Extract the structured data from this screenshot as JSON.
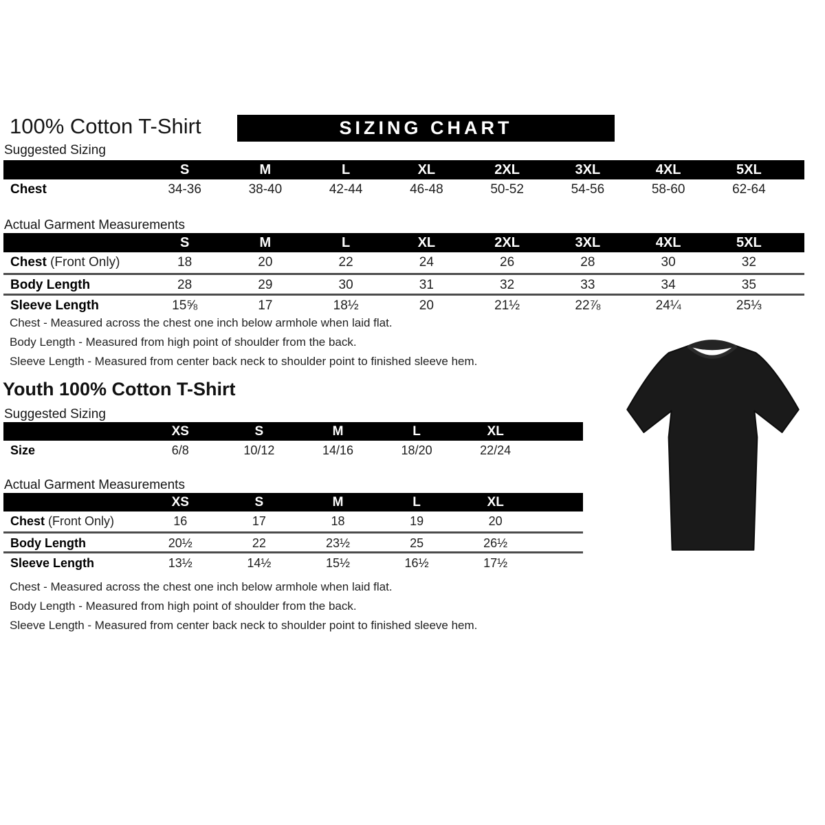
{
  "adult": {
    "title": "100% Cotton T-Shirt",
    "banner": "SIZING CHART",
    "suggested_heading": "Suggested Sizing",
    "suggested_table": {
      "sizes": [
        "S",
        "M",
        "L",
        "XL",
        "2XL",
        "3XL",
        "4XL",
        "5XL"
      ],
      "rows": [
        {
          "label": "Chest",
          "suffix": "",
          "values": [
            "34-36",
            "38-40",
            "42-44",
            "46-48",
            "50-52",
            "54-56",
            "58-60",
            "62-64"
          ]
        }
      ]
    },
    "actual_heading": "Actual Garment Measurements",
    "actual_table": {
      "sizes": [
        "S",
        "M",
        "L",
        "XL",
        "2XL",
        "3XL",
        "4XL",
        "5XL"
      ],
      "rows": [
        {
          "label": "Chest",
          "suffix": " (Front Only)",
          "values": [
            "18",
            "20",
            "22",
            "24",
            "26",
            "28",
            "30",
            "32"
          ]
        },
        {
          "label": "Body Length",
          "suffix": "",
          "values": [
            "28",
            "29",
            "30",
            "31",
            "32",
            "33",
            "34",
            "35"
          ]
        },
        {
          "label": "Sleeve Length",
          "suffix": "",
          "values": [
            "15⅝",
            "17",
            "18½",
            "20",
            "21½",
            "22⅞",
            "24¼",
            "25⅓"
          ]
        }
      ]
    },
    "notes": [
      "Chest - Measured across the chest one inch below armhole when laid flat.",
      "Body Length - Measured from high point of shoulder from the back.",
      "Sleeve Length - Measured from center back neck to shoulder point to finished sleeve hem."
    ]
  },
  "youth": {
    "title": "Youth 100% Cotton T-Shirt",
    "suggested_heading": "Suggested Sizing",
    "suggested_table": {
      "sizes": [
        "XS",
        "S",
        "M",
        "L",
        "XL"
      ],
      "rows": [
        {
          "label": "Size",
          "suffix": "",
          "values": [
            "6/8",
            "10/12",
            "14/16",
            "18/20",
            "22/24"
          ]
        }
      ]
    },
    "actual_heading": "Actual Garment Measurements",
    "actual_table": {
      "sizes": [
        "XS",
        "S",
        "M",
        "L",
        "XL"
      ],
      "rows": [
        {
          "label": "Chest",
          "suffix": " (Front Only)",
          "values": [
            "16",
            "17",
            "18",
            "19",
            "20"
          ]
        },
        {
          "label": "Body Length",
          "suffix": "",
          "values": [
            "20½",
            "22",
            "23½",
            "25",
            "26½"
          ]
        },
        {
          "label": "Sleeve Length",
          "suffix": "",
          "values": [
            "13½",
            "14½",
            "15½",
            "16½",
            "17½"
          ]
        }
      ]
    },
    "notes": [
      "Chest - Measured across the chest one inch below armhole when laid flat.",
      "Body Length - Measured from high point of shoulder from the back.",
      "Sleeve Length - Measured from center back neck to shoulder point to finished sleeve hem."
    ]
  },
  "tshirt_image": {
    "description": "black short-sleeve t-shirt photo",
    "color": "#1a1a1a"
  },
  "colors": {
    "bar_bg": "#000000",
    "bar_text": "#ffffff",
    "separator": "#4b4b4b",
    "text": "#1c1c1c"
  }
}
